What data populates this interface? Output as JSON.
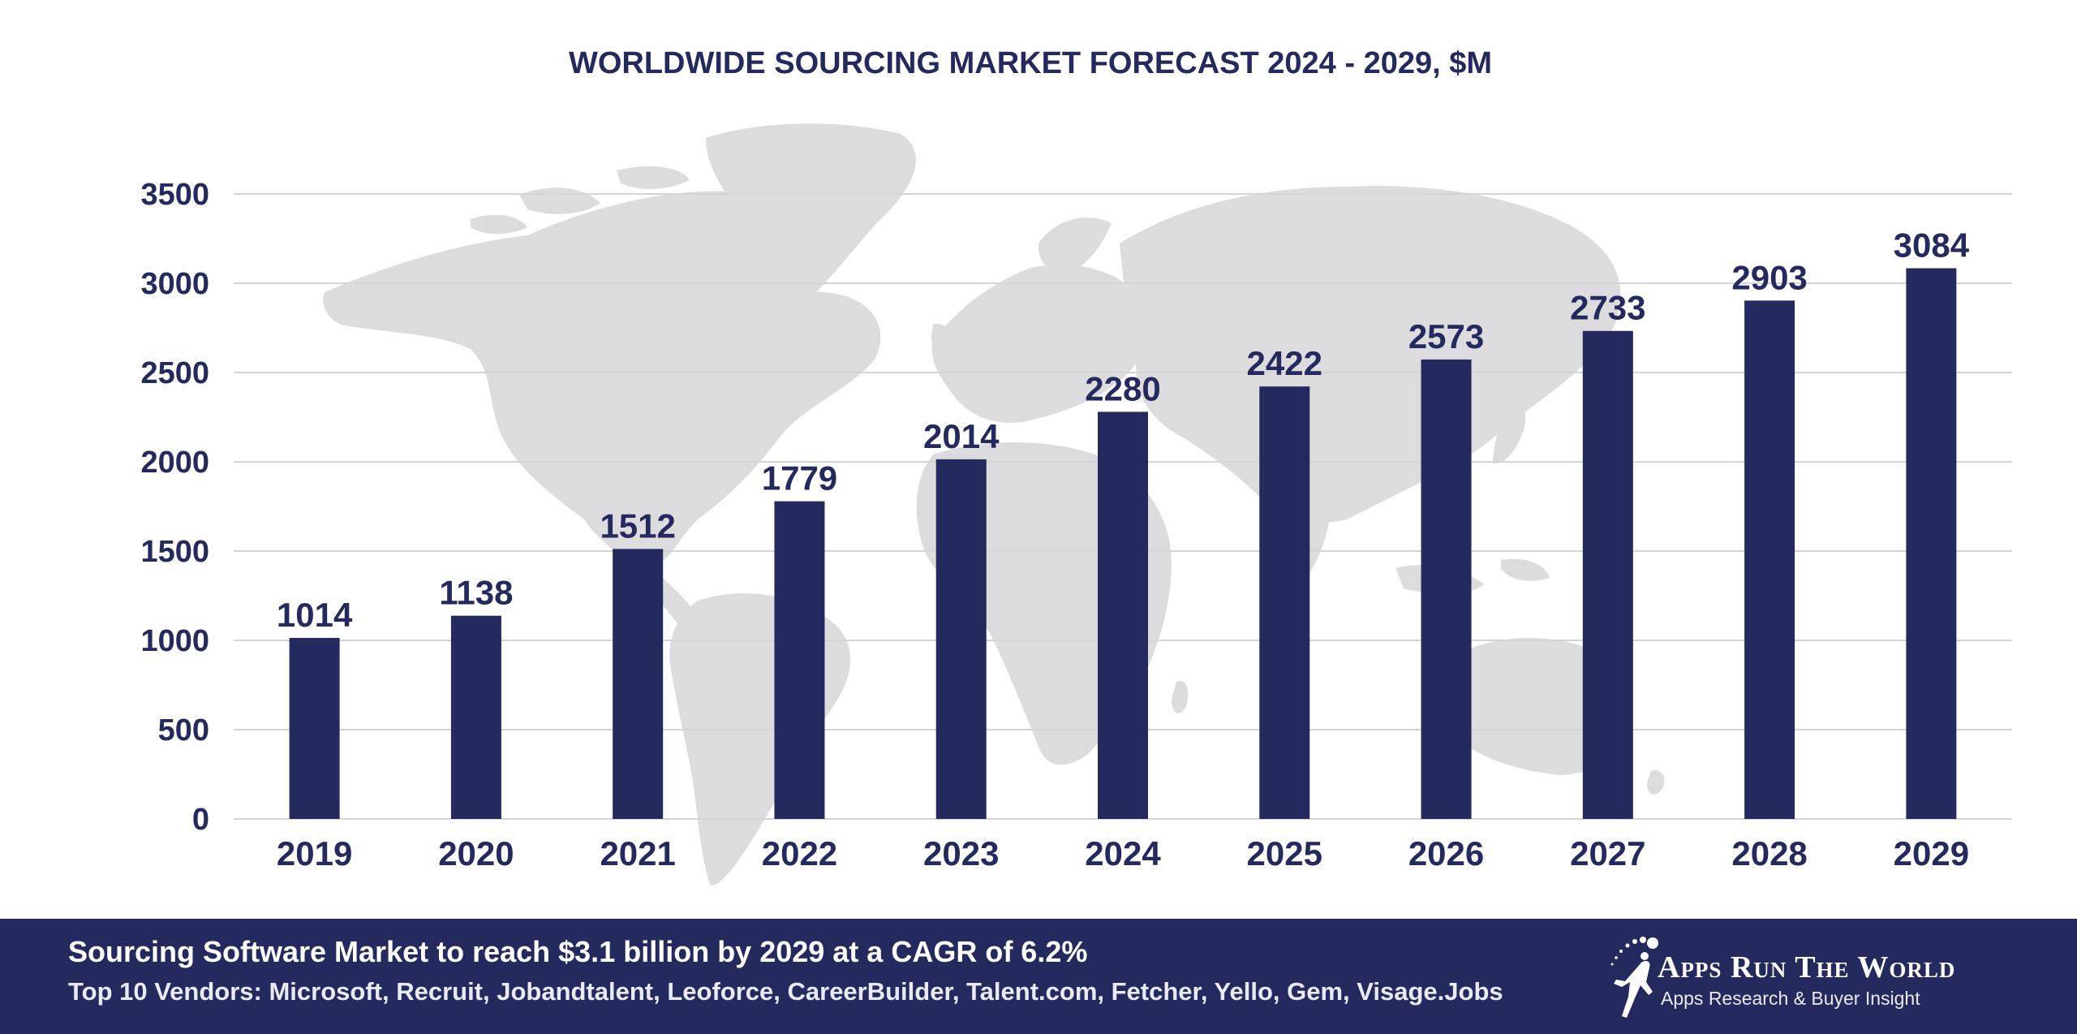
{
  "chart_data": {
    "type": "bar",
    "title": "WORLDWIDE SOURCING MARKET FORECAST 2024 - 2029, $M",
    "categories": [
      "2019",
      "2020",
      "2021",
      "2022",
      "2023",
      "2024",
      "2025",
      "2026",
      "2027",
      "2028",
      "2029"
    ],
    "values": [
      1014,
      1138,
      1512,
      1779,
      2014,
      2280,
      2422,
      2573,
      2733,
      2903,
      3084
    ],
    "yticks": [
      0,
      500,
      1000,
      1500,
      2000,
      2500,
      3000,
      3500
    ],
    "ylim": [
      0,
      3500
    ],
    "xlabel": "",
    "ylabel": "",
    "grid": true,
    "data_labels": true,
    "bar_color": "#252a5e",
    "gridline_color": "#d4d4d4",
    "background_graphic": "world-map"
  },
  "footer": {
    "headline": "Sourcing Software Market to reach $3.1 billion by 2029 at a CAGR of 6.2%",
    "vendors": "Top 10 Vendors: Microsoft, Recruit, Jobandtalent, Leoforce, CareerBuilder, Talent.com, Fetcher, Yello, Gem, Visage.Jobs",
    "brand_name": "Apps Run The World",
    "brand_tagline": "Apps Research & Buyer Insight",
    "brand_logo_icon": "running-figure-icon",
    "background": "#252a5e"
  }
}
